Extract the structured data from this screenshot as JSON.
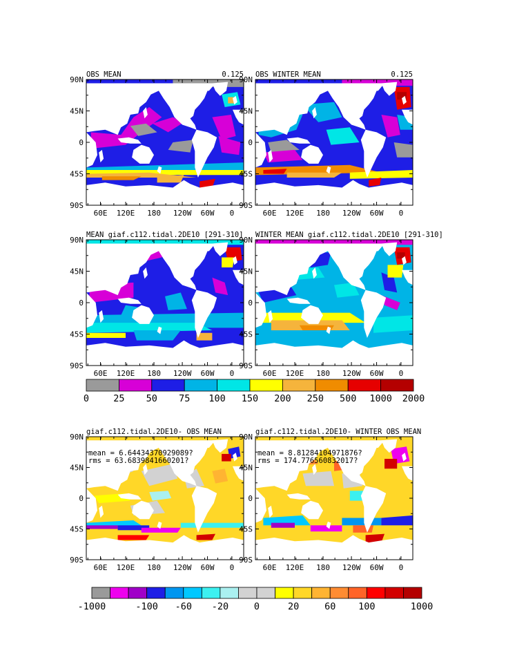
{
  "colors": {
    "land": "#ffffff",
    "frame": "#000000",
    "top_palette": [
      "#9a9a9a",
      "#d700d7",
      "#1e1ee6",
      "#00b4e6",
      "#00e6e6",
      "#ffff00",
      "#f5b43c",
      "#f08c00",
      "#e60000",
      "#b40000"
    ],
    "diff_palette": [
      "#9a9a9a",
      "#ee00ee",
      "#a000c8",
      "#1e1ee6",
      "#0096f0",
      "#00c8ff",
      "#3cf0f0",
      "#aaf0f0",
      "#d2d2d2",
      "#d2d2d2",
      "#ffff00",
      "#ffd728",
      "#ffb432",
      "#ff8c32",
      "#ff6428",
      "#ff0000",
      "#d20000",
      "#b40000"
    ]
  },
  "chart_data": [
    {
      "type": "heatmap",
      "title": "OBS MEAN",
      "corner_label": "0.125",
      "xticks": [
        "60E",
        "120E",
        "180",
        "120W",
        "60W",
        "0"
      ],
      "yticks": [
        "90N",
        "45N",
        "0",
        "45S",
        "90S"
      ],
      "ylim": [
        -90,
        90
      ],
      "variant": 0
    },
    {
      "type": "heatmap",
      "title": "OBS WINTER MEAN",
      "corner_label": "0.125",
      "xticks": [
        "60E",
        "120E",
        "180",
        "120W",
        "60W",
        "0"
      ],
      "yticks": [
        "90N",
        "45N",
        "0",
        "45S",
        "90S"
      ],
      "ylim": [
        -90,
        90
      ],
      "variant": 1
    },
    {
      "type": "heatmap",
      "title": "MEAN giaf.c112.tidal.2DE10 [291-310]",
      "xticks": [
        "60E",
        "120E",
        "180",
        "120W",
        "60W",
        "0"
      ],
      "yticks": [
        "90N",
        "45N",
        "0",
        "45S",
        "90S"
      ],
      "ylim": [
        -90,
        90
      ],
      "variant": 2
    },
    {
      "type": "heatmap",
      "title": "WINTER MEAN giaf.c112.tidal.2DE10 [291-310]",
      "xticks": [
        "60E",
        "120E",
        "180",
        "120W",
        "60W",
        "0"
      ],
      "yticks": [
        "90N",
        "45N",
        "0",
        "45S",
        "90S"
      ],
      "ylim": [
        -90,
        90
      ],
      "variant": 3
    },
    {
      "type": "heatmap",
      "title": "giaf.c112.tidal.2DE10- OBS MEAN",
      "mean_text": "mean = 6.64434370929089?",
      "rms_text": "rms = 63.6839841660201?",
      "xticks": [
        "60E",
        "120E",
        "180",
        "120W",
        "60W",
        "0"
      ],
      "yticks": [
        "90N",
        "45N",
        "0",
        "45S",
        "90S"
      ],
      "ylim": [
        -90,
        90
      ],
      "variant": 4
    },
    {
      "type": "heatmap",
      "title": "giaf.c112.tidal.2DE10- WINTER OBS MEAN",
      "mean_text": "mean = 8.81284104971876?",
      "rms_text": "rms = 174.776560832017?",
      "xticks": [
        "60E",
        "120E",
        "180",
        "120W",
        "60W",
        "0"
      ],
      "yticks": [
        "90N",
        "45N",
        "0",
        "45S",
        "90S"
      ],
      "ylim": [
        -90,
        90
      ],
      "variant": 5
    }
  ],
  "colorbars": {
    "top": {
      "labels": [
        "0",
        "25",
        "50",
        "75",
        "100",
        "150",
        "200",
        "250",
        "500",
        "1000",
        "2000"
      ]
    },
    "diff": {
      "labels": [
        "-1000",
        "-100",
        "-60",
        "-20",
        "0",
        "20",
        "60",
        "100",
        "1000"
      ],
      "label_at_boundary": [
        0,
        3,
        5,
        7,
        9,
        11,
        13,
        15,
        18
      ]
    }
  }
}
